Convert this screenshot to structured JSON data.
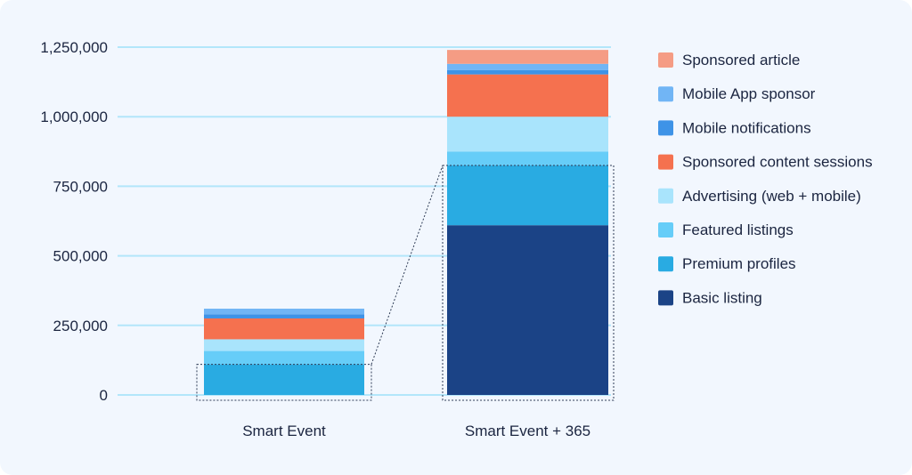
{
  "chart_data": {
    "type": "bar",
    "stacked": true,
    "categories": [
      "Smart Event",
      "Smart Event + 365"
    ],
    "ylim": [
      0,
      1250000
    ],
    "yticks": [
      {
        "value": 0,
        "label": "0"
      },
      {
        "value": 250000,
        "label": "250,000"
      },
      {
        "value": 500000,
        "label": "500,000"
      },
      {
        "value": 750000,
        "label": "750,000"
      },
      {
        "value": 1000000,
        "label": "1,000,000"
      },
      {
        "value": 1250000,
        "label": "1,250,000"
      }
    ],
    "grid": true,
    "legend_position": "right",
    "series": [
      {
        "name": "Basic listing",
        "color": "#1b4386",
        "values": [
          0,
          610000
        ]
      },
      {
        "name": "Premium profiles",
        "color": "#29abe2",
        "values": [
          110000,
          215000
        ]
      },
      {
        "name": "Featured listings",
        "color": "#66cdf8",
        "values": [
          48000,
          50000
        ]
      },
      {
        "name": "Advertising (web + mobile)",
        "color": "#a9e4fc",
        "values": [
          42000,
          125000
        ]
      },
      {
        "name": "Sponsored content sessions",
        "color": "#f5714f",
        "values": [
          75000,
          152000
        ]
      },
      {
        "name": "Mobile notifications",
        "color": "#3e93e7",
        "values": [
          15000,
          15000
        ]
      },
      {
        "name": "Mobile App sponsor",
        "color": "#71b5f5",
        "values": [
          20000,
          23000
        ]
      },
      {
        "name": "Sponsored article",
        "color": "#f59c84",
        "values": [
          0,
          50000
        ]
      }
    ],
    "grid_color": "#b3e6fa",
    "highlight_note": "dotted box around Basic listing + Premium profiles, linked to Premium profiles of Smart Event"
  }
}
